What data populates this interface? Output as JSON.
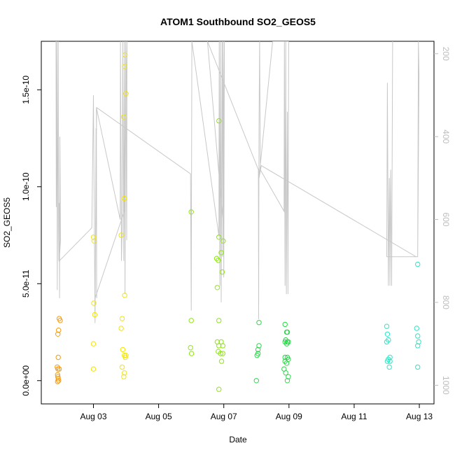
{
  "chart_data": {
    "type": "scatter",
    "title": "ATOM1 Southbound SO2_GEOS5",
    "xlabel": "Date",
    "ylabel": "SO2_GEOS5",
    "x_ticks": [
      "Aug 03",
      "Aug 05",
      "Aug 07",
      "Aug 09",
      "Aug 11",
      "Aug 13"
    ],
    "x_tick_days": [
      3,
      5,
      7,
      9,
      11,
      13
    ],
    "xlim_days": [
      1.4,
      13.45
    ],
    "y_ticks": [
      "0.0e+00",
      "5.0e-11",
      "1.0e-10",
      "1.5e-10"
    ],
    "y_tick_values": [
      0,
      5e-11,
      1e-10,
      1.5e-10
    ],
    "ylim": [
      -1.2e-11,
      1.75e-10
    ],
    "y2_ticks": [
      "200",
      "400",
      "600",
      "800",
      "1000"
    ],
    "y2_tick_values": [
      200,
      400,
      600,
      800,
      1000
    ],
    "y2lim_reversed": [
      1045,
      170
    ],
    "y2_axis_color": "#bdbdbd",
    "pressure_line_color": "#c8c8c8",
    "grid": false,
    "series": [
      {
        "color": "#f39c12",
        "points": [
          [
            1.95,
            3.2e-11
          ],
          [
            1.98,
            3.1e-11
          ],
          [
            1.93,
            2.6e-11
          ],
          [
            1.91,
            2.4e-11
          ],
          [
            1.92,
            1.2e-11
          ],
          [
            1.89,
            7e-12
          ],
          [
            1.95,
            6e-12
          ],
          [
            1.91,
            6e-12
          ],
          [
            1.9,
            3e-12
          ],
          [
            1.91,
            2e-12
          ],
          [
            1.92,
            1e-12
          ],
          [
            1.93,
            0
          ],
          [
            1.9,
            -5e-13
          ]
        ]
      },
      {
        "color": "#f1e40f",
        "points": [
          [
            3.0,
            7.4e-11
          ],
          [
            3.02,
            7.2e-11
          ],
          [
            3.01,
            4e-11
          ],
          [
            3.04,
            3.4e-11
          ],
          [
            3.0,
            1.9e-11
          ],
          [
            3.0,
            6e-12
          ],
          [
            3.85,
            7.5e-11
          ],
          [
            3.97,
            1.68e-10
          ],
          [
            3.96,
            1.62e-10
          ],
          [
            4.0,
            1.48e-10
          ],
          [
            3.93,
            1.36e-10
          ],
          [
            3.95,
            9.4e-11
          ],
          [
            3.96,
            4.4e-11
          ],
          [
            3.88,
            3.2e-11
          ],
          [
            3.85,
            2.7e-11
          ],
          [
            3.9,
            1.6e-11
          ],
          [
            3.95,
            1.3e-11
          ],
          [
            4.0,
            1.3e-11
          ],
          [
            3.98,
            1.2e-11
          ],
          [
            3.88,
            7e-12
          ],
          [
            3.95,
            4e-12
          ],
          [
            3.93,
            2e-12
          ]
        ]
      },
      {
        "color": "#8ee70e",
        "points": [
          [
            6.0,
            8.7e-11
          ],
          [
            6.0,
            3.1e-11
          ],
          [
            5.98,
            1.7e-11
          ],
          [
            6.01,
            1.4e-11
          ],
          [
            6.85,
            1.34e-10
          ],
          [
            6.85,
            7.4e-11
          ],
          [
            6.98,
            7.2e-11
          ],
          [
            6.92,
            6.6e-11
          ],
          [
            6.78,
            6.3e-11
          ],
          [
            6.83,
            6.2e-11
          ],
          [
            6.95,
            5.6e-11
          ],
          [
            6.8,
            4.8e-11
          ],
          [
            6.85,
            3.1e-11
          ],
          [
            6.8,
            2e-11
          ],
          [
            6.92,
            2e-11
          ],
          [
            6.85,
            1.8e-11
          ],
          [
            6.97,
            1.8e-11
          ],
          [
            6.83,
            1.5e-11
          ],
          [
            6.9,
            1.4e-11
          ],
          [
            6.97,
            1.4e-11
          ],
          [
            6.93,
            1e-11
          ],
          [
            6.85,
            -4.5e-12
          ]
        ]
      },
      {
        "color": "#2bd84a",
        "points": [
          [
            8.08,
            3e-11
          ],
          [
            8.08,
            1.8e-11
          ],
          [
            8.05,
            1.6e-11
          ],
          [
            8.05,
            1.4e-11
          ],
          [
            8.02,
            1.3e-11
          ],
          [
            8.0,
            0
          ],
          [
            8.88,
            2.9e-11
          ],
          [
            8.95,
            2.5e-11
          ],
          [
            8.93,
            2.5e-11
          ],
          [
            8.9,
            2.1e-11
          ],
          [
            8.88,
            2e-11
          ],
          [
            8.95,
            2e-11
          ],
          [
            8.98,
            2e-11
          ],
          [
            8.93,
            1.9e-11
          ],
          [
            8.88,
            1.2e-11
          ],
          [
            8.95,
            1.2e-11
          ],
          [
            8.98,
            1.1e-11
          ],
          [
            8.88,
            1e-11
          ],
          [
            8.93,
            9e-12
          ],
          [
            8.85,
            6e-12
          ],
          [
            8.9,
            4e-12
          ],
          [
            8.98,
            2e-12
          ],
          [
            8.95,
            0
          ]
        ]
      },
      {
        "color": "#2ee6c4",
        "points": [
          [
            12.95,
            6e-11
          ],
          [
            12.0,
            2.8e-11
          ],
          [
            12.92,
            2.7e-11
          ],
          [
            12.02,
            2.4e-11
          ],
          [
            12.95,
            2.3e-11
          ],
          [
            12.05,
            2.1e-11
          ],
          [
            12.0,
            2e-11
          ],
          [
            12.98,
            2e-11
          ],
          [
            12.95,
            1.8e-11
          ],
          [
            12.1,
            1.2e-11
          ],
          [
            12.05,
            1.1e-11
          ],
          [
            12.02,
            1e-11
          ],
          [
            12.1,
            1e-11
          ],
          [
            12.08,
            7e-12
          ],
          [
            12.95,
            7e-12
          ]
        ]
      }
    ],
    "pressure_line": [
      [
        1.85,
        170
      ],
      [
        1.86,
        570
      ],
      [
        1.88,
        170
      ],
      [
        1.89,
        770
      ],
      [
        1.92,
        170
      ],
      [
        1.93,
        620
      ],
      [
        1.94,
        700
      ],
      [
        1.95,
        560
      ],
      [
        1.96,
        790
      ],
      [
        1.97,
        400
      ],
      [
        1.99,
        650
      ],
      [
        1.95,
        700
      ],
      [
        2.95,
        620
      ],
      [
        3.0,
        300
      ],
      [
        3.05,
        850
      ],
      [
        3.08,
        380
      ],
      [
        3.1,
        790
      ],
      [
        3.09,
        330
      ],
      [
        3.82,
        600
      ],
      [
        3.83,
        170
      ],
      [
        3.86,
        700
      ],
      [
        3.88,
        620
      ],
      [
        3.9,
        170
      ],
      [
        3.93,
        700
      ],
      [
        3.95,
        170
      ],
      [
        3.97,
        780
      ],
      [
        3.99,
        170
      ],
      [
        4.02,
        650
      ],
      [
        4.03,
        170
      ],
      [
        3.95,
        580
      ],
      [
        3.05,
        790
      ],
      [
        3.1,
        330
      ],
      [
        5.98,
        490
      ],
      [
        6.0,
        820
      ],
      [
        6.02,
        170
      ],
      [
        6.85,
        640
      ],
      [
        6.86,
        170
      ],
      [
        6.88,
        760
      ],
      [
        6.9,
        170
      ],
      [
        6.92,
        800
      ],
      [
        6.95,
        170
      ],
      [
        6.97,
        690
      ],
      [
        6.98,
        170
      ],
      [
        7.0,
        740
      ],
      [
        7.02,
        170
      ],
      [
        6.97,
        600
      ],
      [
        6.5,
        170
      ],
      [
        8.06,
        480
      ],
      [
        8.07,
        840
      ],
      [
        8.08,
        380
      ],
      [
        8.1,
        170
      ],
      [
        8.12,
        480
      ],
      [
        8.85,
        580
      ],
      [
        8.86,
        170
      ],
      [
        8.88,
        760
      ],
      [
        8.9,
        170
      ],
      [
        8.92,
        780
      ],
      [
        8.95,
        340
      ],
      [
        8.97,
        780
      ],
      [
        8.99,
        170
      ],
      [
        8.5,
        170
      ],
      [
        8.08,
        500
      ],
      [
        8.15,
        470
      ],
      [
        12.9,
        690
      ],
      [
        12.95,
        690
      ],
      [
        12.97,
        170
      ],
      [
        12.99,
        250
      ],
      [
        12.95,
        690
      ],
      [
        12.0,
        690
      ],
      [
        12.02,
        270
      ],
      [
        12.05,
        760
      ],
      [
        12.08,
        500
      ],
      [
        12.1,
        760
      ],
      [
        12.12,
        480
      ],
      [
        12.15,
        760
      ],
      [
        12.18,
        170
      ]
    ]
  }
}
